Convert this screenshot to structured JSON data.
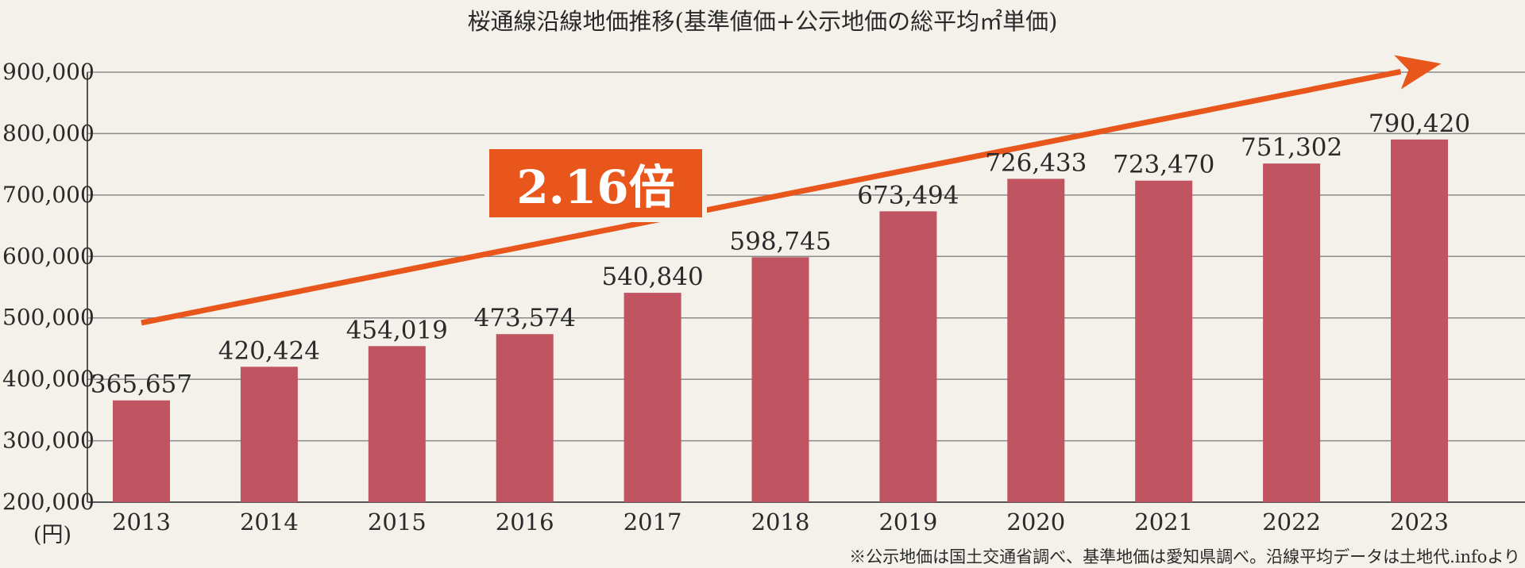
{
  "chart_data": {
    "type": "bar",
    "title": "桜通線沿線地価推移(基準値価+公示地価の総平均㎡単価)",
    "unit_label": "(円)",
    "categories": [
      "2013",
      "2014",
      "2015",
      "2016",
      "2017",
      "2018",
      "2019",
      "2020",
      "2021",
      "2022",
      "2023"
    ],
    "values": [
      365657,
      420424,
      454019,
      473574,
      540840,
      598745,
      673494,
      726433,
      723470,
      751302,
      790420
    ],
    "data_labels": [
      "365,657",
      "420,424",
      "454,019",
      "473,574",
      "540,840",
      "598,745",
      "673,494",
      "726,433",
      "723,470",
      "751,302",
      "790,420"
    ],
    "ylim": [
      200000,
      900000
    ],
    "yticks": [
      200000,
      300000,
      400000,
      500000,
      600000,
      700000,
      800000,
      900000
    ],
    "ytick_labels": [
      "200,000",
      "300,000",
      "400,000",
      "500,000",
      "600,000",
      "700,000",
      "800,000",
      "900,000"
    ],
    "grid": true,
    "bar_color": "#c05460",
    "annotation": {
      "text": "2.16倍",
      "color": "#e8561c",
      "arrow_start": {
        "x": "2013",
        "y": 492000
      },
      "arrow_end": {
        "x": "2023",
        "y": 907000
      }
    },
    "footnote": "※公示地価は国土交通省調べ、基準地価は愛知県調べ。沿線平均データは土地代.infoより"
  }
}
